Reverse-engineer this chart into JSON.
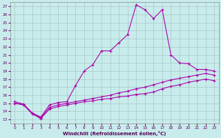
{
  "background_color": "#c8ecec",
  "grid_color": "#b0c8c8",
  "line_color": "#aa00aa",
  "xlabel": "Windchill (Refroidissement éolien,°C)",
  "xlim": [
    -0.5,
    23.5
  ],
  "ylim": [
    12.5,
    27.5
  ],
  "xticks": [
    0,
    1,
    2,
    3,
    4,
    5,
    6,
    7,
    8,
    9,
    10,
    11,
    12,
    13,
    14,
    15,
    16,
    17,
    18,
    19,
    20,
    21,
    22,
    23
  ],
  "yticks": [
    13,
    14,
    15,
    16,
    17,
    18,
    19,
    20,
    21,
    22,
    23,
    24,
    25,
    26,
    27
  ],
  "line1_x": [
    0,
    1,
    2,
    3,
    4,
    5,
    6,
    7,
    8,
    9,
    10,
    11,
    12,
    13,
    14,
    15,
    16,
    17,
    18,
    19,
    20,
    21,
    22,
    23
  ],
  "line1_y": [
    15.2,
    14.9,
    13.8,
    13.3,
    14.8,
    15.1,
    15.2,
    17.2,
    19.0,
    19.8,
    21.5,
    21.5,
    22.5,
    23.5,
    27.2,
    26.6,
    25.5,
    26.6,
    21.0,
    20.0,
    19.9,
    19.2,
    19.2,
    19.0
  ],
  "line2_x": [
    0,
    1,
    2,
    3,
    4,
    5,
    6,
    7,
    8,
    9,
    10,
    11,
    12,
    13,
    14,
    15,
    16,
    17,
    18,
    19,
    20,
    21,
    22,
    23
  ],
  "line2_y": [
    15.0,
    14.9,
    13.8,
    13.2,
    14.5,
    14.8,
    15.0,
    15.2,
    15.4,
    15.6,
    15.8,
    16.0,
    16.3,
    16.5,
    16.8,
    17.0,
    17.3,
    17.6,
    17.9,
    18.1,
    18.3,
    18.5,
    18.7,
    18.5
  ],
  "line3_x": [
    0,
    1,
    2,
    3,
    4,
    5,
    6,
    7,
    8,
    9,
    10,
    11,
    12,
    13,
    14,
    15,
    16,
    17,
    18,
    19,
    20,
    21,
    22,
    23
  ],
  "line3_y": [
    15.0,
    14.8,
    13.7,
    13.1,
    14.3,
    14.6,
    14.8,
    15.0,
    15.2,
    15.3,
    15.5,
    15.6,
    15.8,
    15.9,
    16.1,
    16.2,
    16.4,
    16.8,
    17.1,
    17.3,
    17.6,
    17.8,
    18.0,
    17.8
  ]
}
